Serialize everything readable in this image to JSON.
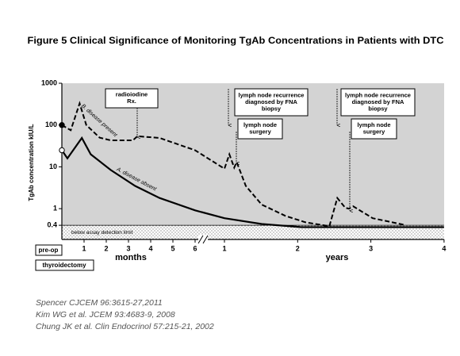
{
  "chart_data": {
    "type": "line",
    "title": "Figure 5 Clinical Significance of Monitoring TgAb Concentrations in Patients with DTC",
    "y_label": "TgAb concentration kIU/L",
    "x_labels": [
      "months",
      "years"
    ],
    "log_y": true,
    "ylim": [
      0.2,
      1000
    ],
    "yticks": [
      0.4,
      1,
      10,
      100,
      1000
    ],
    "xlim": [
      0,
      48
    ],
    "xticks": [
      1,
      2,
      3,
      4,
      5,
      6,
      {
        "value": 12,
        "label": "1"
      },
      {
        "value": 24,
        "label": "2"
      },
      {
        "value": 36,
        "label": "3"
      },
      {
        "value": 48,
        "label": "4"
      }
    ],
    "detection_label": "below assay detection limit",
    "preop_label": "pre-op",
    "surgery_label": "thyroidectomy",
    "series": [
      {
        "name": "B. disease present",
        "color": "#000000",
        "style": "dashed",
        "marker_first": "filled",
        "x": [
          0,
          0.4,
          0.8,
          1.1,
          1.7,
          2.2,
          3.2,
          3.4,
          4.4,
          6,
          12,
          12.8,
          13.6,
          14,
          15.5,
          18.1,
          22,
          25.3,
          29.2,
          30.5,
          31.8,
          32.4,
          33.1,
          36.3,
          41.5
        ],
        "values": [
          100,
          75,
          330,
          100,
          50,
          43,
          43,
          54,
          49,
          25,
          9,
          20,
          9.6,
          13,
          3.5,
          1.25,
          0.67,
          0.47,
          0.38,
          1.8,
          1.05,
          1,
          1.14,
          0.59,
          0.41
        ]
      },
      {
        "name": "A. disease absent",
        "color": "#000000",
        "style": "solid",
        "marker_first": "open",
        "x": [
          0,
          0.25,
          0.9,
          1.3,
          2.2,
          3.3,
          4.4,
          6,
          12,
          18.1,
          24.6,
          48
        ],
        "values": [
          25,
          16,
          49,
          20,
          8.4,
          3.5,
          1.8,
          0.91,
          0.59,
          0.43,
          0.36,
          0.36
        ]
      }
    ],
    "annotations": [
      {
        "lines": [
          "radioiodine",
          "Rx."
        ]
      },
      {
        "lines": [
          "lymph node recurrence",
          "diagnosed by FNA",
          "biopsy"
        ]
      },
      {
        "lines": [
          "lymph node",
          "surgery"
        ]
      },
      {
        "lines": [
          "lymph node recurrence",
          "diagnosed by FNA",
          "biopsy"
        ]
      },
      {
        "lines": [
          "lymph node",
          "surgery"
        ]
      }
    ],
    "references": [
      "Spencer CJCEM 96:3615-27,2011",
      "Kim WG et al. JCEM 93:4683-9, 2008",
      "Chung JK et al. Clin Endocrinol 57:215-21, 2002"
    ]
  }
}
